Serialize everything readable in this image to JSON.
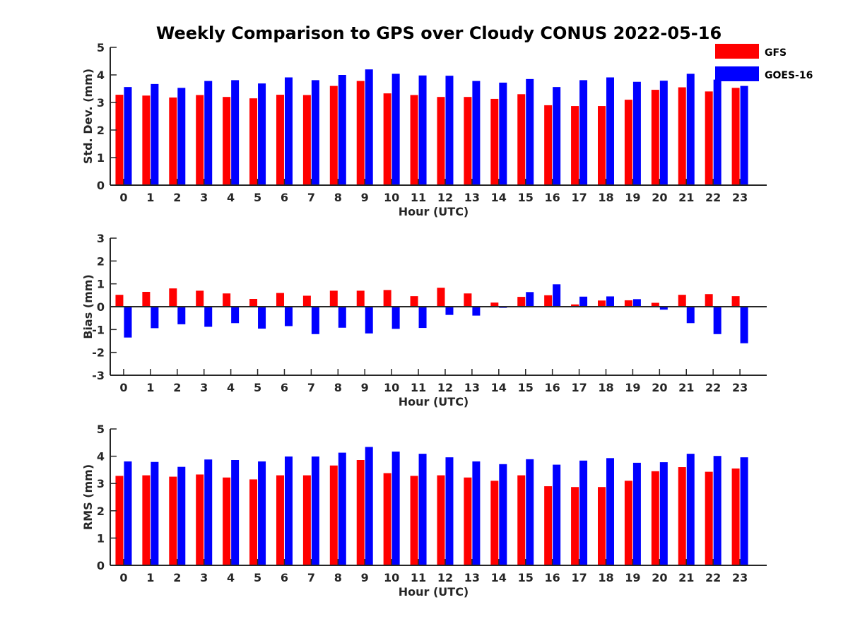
{
  "title": "Weekly Comparison to GPS over Cloudy CONUS 2022-05-16",
  "legend": {
    "placement": "top-right",
    "entries": [
      {
        "label": "GFS",
        "color": "#ff0000"
      },
      {
        "label": "GOES-16",
        "color": "#0000ff"
      }
    ]
  },
  "chart_data": [
    {
      "type": "bar",
      "xlabel": "Hour (UTC)",
      "ylabel": "Std. Dev. (mm)",
      "ylim": [
        0,
        5
      ],
      "yticks": [
        0,
        1,
        2,
        3,
        4,
        5
      ],
      "categories": [
        "0",
        "1",
        "2",
        "3",
        "4",
        "5",
        "6",
        "7",
        "8",
        "9",
        "10",
        "11",
        "12",
        "13",
        "14",
        "15",
        "16",
        "17",
        "18",
        "19",
        "20",
        "21",
        "22",
        "23"
      ],
      "series": [
        {
          "name": "GFS",
          "color": "#ff0000",
          "values": [
            3.28,
            3.25,
            3.18,
            3.27,
            3.2,
            3.15,
            3.28,
            3.27,
            3.6,
            3.78,
            3.33,
            3.27,
            3.2,
            3.2,
            3.13,
            3.3,
            2.9,
            2.87,
            2.87,
            3.1,
            3.46,
            3.55,
            3.4,
            3.53
          ]
        },
        {
          "name": "GOES-16",
          "color": "#0000ff",
          "values": [
            3.56,
            3.67,
            3.53,
            3.78,
            3.81,
            3.69,
            3.91,
            3.81,
            4.0,
            4.2,
            4.04,
            3.98,
            3.97,
            3.78,
            3.72,
            3.85,
            3.56,
            3.81,
            3.91,
            3.75,
            3.79,
            4.04,
            3.83,
            3.6
          ]
        }
      ]
    },
    {
      "type": "bar",
      "xlabel": "Hour (UTC)",
      "ylabel": "Bias (mm)",
      "ylim": [
        -3,
        3
      ],
      "yticks": [
        -3,
        -2,
        -1,
        0,
        1,
        2,
        3
      ],
      "categories": [
        "0",
        "1",
        "2",
        "3",
        "4",
        "5",
        "6",
        "7",
        "8",
        "9",
        "10",
        "11",
        "12",
        "13",
        "14",
        "15",
        "16",
        "17",
        "18",
        "19",
        "20",
        "21",
        "22",
        "23"
      ],
      "series": [
        {
          "name": "GFS",
          "color": "#ff0000",
          "values": [
            0.52,
            0.65,
            0.8,
            0.7,
            0.58,
            0.34,
            0.6,
            0.48,
            0.7,
            0.7,
            0.73,
            0.46,
            0.83,
            0.58,
            0.18,
            0.43,
            0.5,
            0.1,
            0.27,
            0.28,
            0.17,
            0.52,
            0.55,
            0.46
          ]
        },
        {
          "name": "GOES-16",
          "color": "#0000ff",
          "values": [
            -1.35,
            -0.94,
            -0.77,
            -0.88,
            -0.72,
            -0.96,
            -0.85,
            -1.2,
            -0.92,
            -1.17,
            -0.97,
            -0.93,
            -0.36,
            -0.39,
            -0.05,
            0.64,
            0.98,
            0.44,
            0.45,
            0.33,
            -0.13,
            -0.72,
            -1.2,
            -1.6
          ]
        }
      ]
    },
    {
      "type": "bar",
      "xlabel": "Hour (UTC)",
      "ylabel": "RMS (mm)",
      "ylim": [
        0,
        5
      ],
      "yticks": [
        0,
        1,
        2,
        3,
        4,
        5
      ],
      "categories": [
        "0",
        "1",
        "2",
        "3",
        "4",
        "5",
        "6",
        "7",
        "8",
        "9",
        "10",
        "11",
        "12",
        "13",
        "14",
        "15",
        "16",
        "17",
        "18",
        "19",
        "20",
        "21",
        "22",
        "23"
      ],
      "series": [
        {
          "name": "GFS",
          "color": "#ff0000",
          "values": [
            3.28,
            3.3,
            3.25,
            3.33,
            3.22,
            3.15,
            3.3,
            3.3,
            3.66,
            3.86,
            3.38,
            3.28,
            3.3,
            3.22,
            3.1,
            3.3,
            2.9,
            2.87,
            2.87,
            3.1,
            3.45,
            3.6,
            3.43,
            3.55
          ]
        },
        {
          "name": "GOES-16",
          "color": "#0000ff",
          "values": [
            3.81,
            3.79,
            3.61,
            3.88,
            3.86,
            3.81,
            3.99,
            3.99,
            4.13,
            4.34,
            4.17,
            4.09,
            3.96,
            3.81,
            3.71,
            3.89,
            3.69,
            3.84,
            3.93,
            3.76,
            3.78,
            4.09,
            4.01,
            3.96
          ]
        }
      ]
    }
  ]
}
